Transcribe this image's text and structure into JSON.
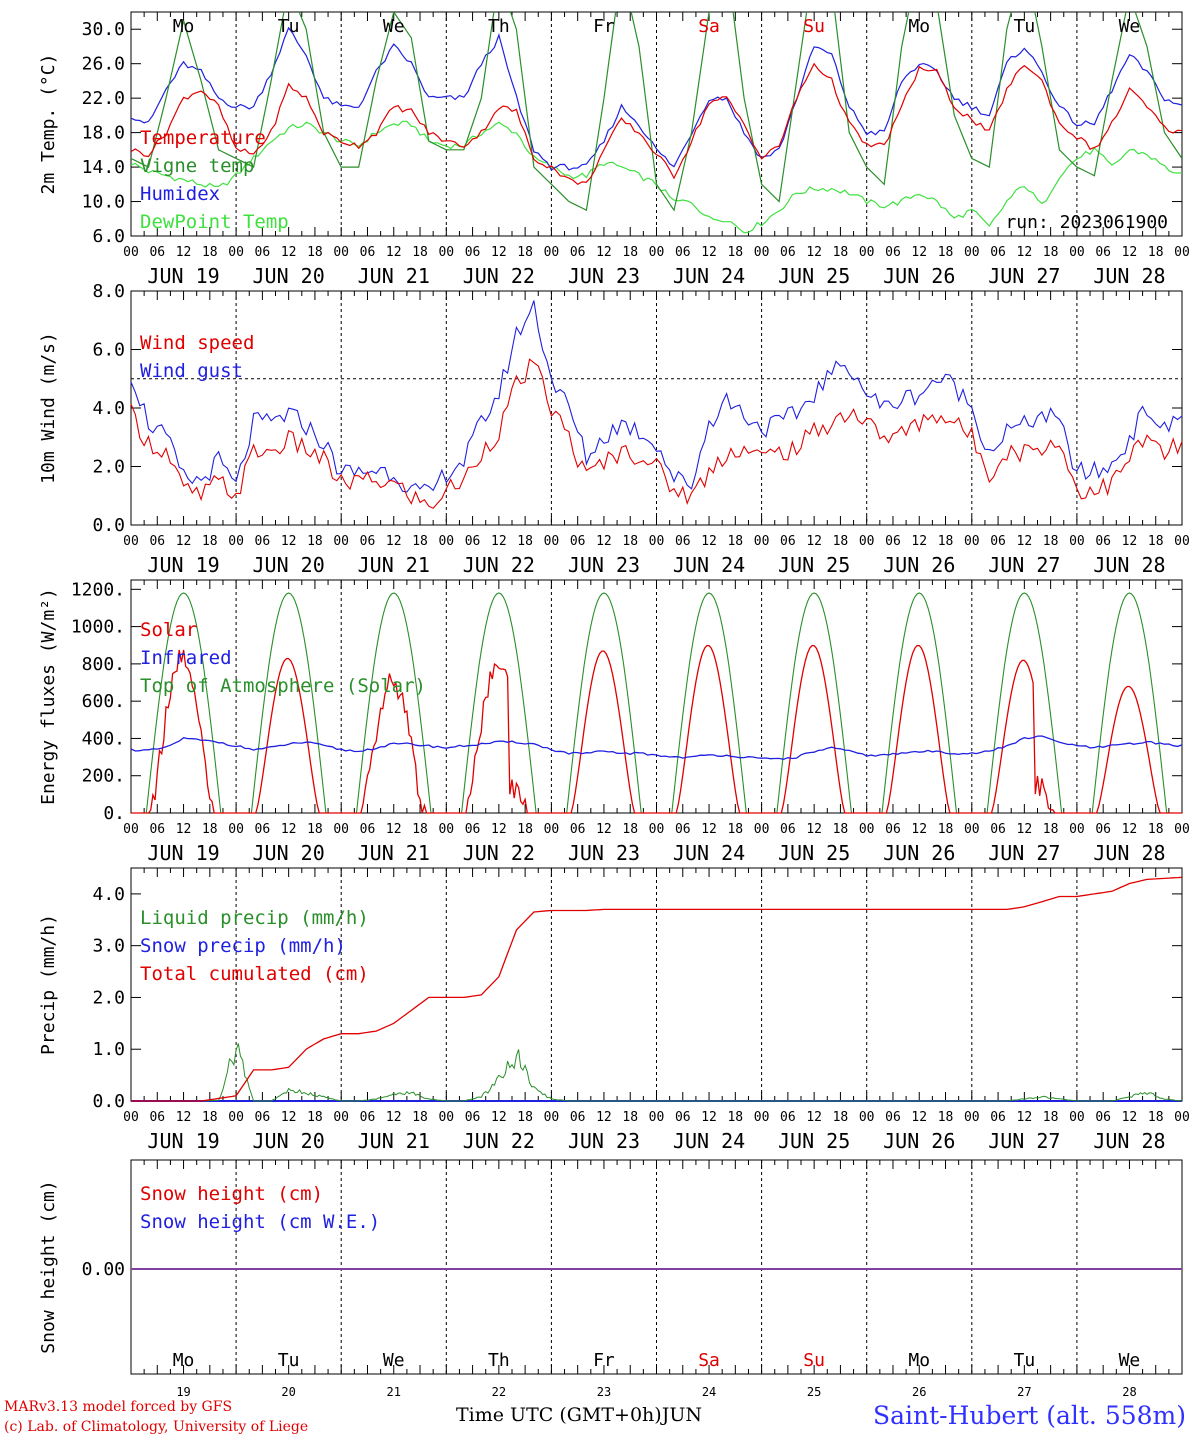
{
  "chart_data": {
    "type": "line",
    "run_label": "run: 2023061900",
    "day_names": [
      "Mo",
      "Tu",
      "We",
      "Th",
      "Fr",
      "Sa",
      "Su",
      "Mo",
      "Tu",
      "We"
    ],
    "day_name_colors": [
      "#000000",
      "#000000",
      "#000000",
      "#000000",
      "#000000",
      "#e00000",
      "#e00000",
      "#000000",
      "#000000",
      "#000000"
    ],
    "date_labels": [
      "JUN 19",
      "JUN 20",
      "JUN 21",
      "JUN 22",
      "JUN 23",
      "JUN 24",
      "JUN 25",
      "JUN 26",
      "JUN 27",
      "JUN 28"
    ],
    "day_numbers": [
      "19",
      "20",
      "21",
      "22",
      "23",
      "24",
      "25",
      "26",
      "27",
      "28"
    ],
    "hour_ticks": [
      "00",
      "06",
      "12",
      "18"
    ],
    "month_label": "JUN",
    "xlabel": "Time UTC (GMT+0h)",
    "panels": [
      {
        "id": "temp",
        "ylabel": "2m Temp. (°C)",
        "ylim": [
          6,
          32
        ],
        "ticks": [
          "6.0",
          "10.0",
          "14.0",
          "18.0",
          "22.0",
          "26.0",
          "30.0"
        ],
        "tick_values": [
          6,
          10,
          14,
          18,
          22,
          26,
          30
        ],
        "series": [
          {
            "name": "Temperature",
            "color": "#e00000",
            "values": [
              16,
              15.5,
              18,
              22,
              23,
              21,
              16,
              15.5,
              18,
              23.5,
              22,
              18,
              17,
              16.5,
              18,
              21,
              20.5,
              18,
              17,
              16.5,
              18,
              21,
              20.5,
              15,
              14,
              12.5,
              12,
              16,
              19.5,
              18,
              15.5,
              13,
              17,
              21.5,
              22,
              19,
              15,
              16.5,
              22,
              26,
              24,
              19,
              16.5,
              16.5,
              21,
              25.5,
              25,
              21,
              19.5,
              18,
              23,
              26,
              24,
              19,
              17.5,
              16,
              19,
              23,
              21,
              18.5,
              18
            ]
          },
          {
            "name": "Vigne temp",
            "color": "#2a8f2a",
            "values": [
              15,
              14,
              22,
              31,
              24,
              16,
              15,
              14,
              24,
              35,
              30,
              18,
              14,
              14,
              24,
              32,
              29,
              17,
              16,
              16,
              22,
              36,
              30,
              14,
              12,
              10,
              9,
              22,
              37,
              28,
              12,
              9,
              18,
              32,
              38,
              22,
              12,
              10,
              24,
              38,
              35,
              18,
              14,
              12,
              28,
              38,
              33,
              20,
              15,
              14,
              30,
              38,
              28,
              16,
              14,
              13,
              24,
              34,
              28,
              18,
              15
            ]
          },
          {
            "name": "Humidex",
            "color": "#2020e0",
            "values": [
              20,
              19,
              23,
              26,
              25,
              22,
              21,
              21,
              25,
              30,
              27,
              22,
              21,
              21,
              25,
              28,
              26,
              22,
              22,
              22,
              26,
              29,
              22,
              16,
              14,
              14,
              14,
              17,
              21,
              19,
              16,
              14,
              18,
              22,
              22,
              18,
              15,
              16,
              22,
              28,
              27,
              21,
              18,
              18,
              24,
              26,
              25,
              22,
              21,
              20,
              26,
              28,
              25,
              21,
              19,
              19,
              23,
              27,
              25,
              22,
              21
            ]
          },
          {
            "name": "DewPoint Temp",
            "color": "#40e040",
            "values": [
              14.5,
              13.5,
              13,
              12.5,
              12,
              11.5,
              13,
              15,
              17,
              18.5,
              19,
              18,
              17,
              16.5,
              18,
              19,
              19,
              17,
              16.5,
              16.5,
              18,
              19,
              18,
              15,
              14,
              13,
              13,
              14.5,
              14,
              13,
              12,
              10,
              10,
              8,
              8,
              6.5,
              7.5,
              9,
              11,
              11.5,
              11.5,
              11,
              10,
              9.5,
              10,
              11,
              10,
              8,
              9,
              7,
              10,
              12,
              9.5,
              13,
              15,
              16,
              14,
              16,
              15.5,
              14,
              13
            ]
          }
        ],
        "legend": [
          "Temperature",
          "Vigne temp",
          "Humidex",
          "DewPoint Temp"
        ]
      },
      {
        "id": "wind",
        "ylabel": "10m Wind (m/s)",
        "ylim": [
          0,
          8
        ],
        "ticks": [
          "0.0",
          "2.0",
          "4.0",
          "6.0",
          "8.0"
        ],
        "tick_values": [
          0,
          2,
          4,
          6,
          8
        ],
        "ref_line": 5,
        "series": [
          {
            "name": "Wind speed",
            "color": "#e00000",
            "values": [
              3.8,
              2.8,
              2.5,
              1.2,
              1.0,
              1.5,
              1.0,
              2.5,
              2.5,
              2.9,
              2.6,
              2.2,
              1.4,
              1.5,
              1.5,
              1.4,
              1.0,
              0.6,
              1.2,
              1.5,
              2.5,
              3.2,
              4.8,
              5.5,
              4.0,
              3.0,
              1.6,
              2.2,
              2.5,
              2.4,
              2.0,
              1.2,
              1.0,
              1.8,
              2.5,
              2.6,
              2.3,
              2.5,
              2.6,
              3.2,
              3.5,
              3.9,
              3.5,
              3.0,
              3.1,
              3.5,
              3.8,
              3.5,
              3.0,
              1.8,
              2.5,
              2.5,
              2.7,
              2.8,
              1.2,
              1.2,
              1.4,
              2.3,
              3.0,
              2.4,
              2.8
            ]
          },
          {
            "name": "Wind gust",
            "color": "#2020e0",
            "values": [
              5.2,
              3.5,
              3.0,
              1.6,
              1.5,
              2.2,
              1.3,
              3.5,
              3.5,
              3.8,
              3.4,
              2.8,
              1.8,
              1.8,
              1.9,
              1.8,
              1.2,
              1.0,
              1.8,
              2.2,
              3.5,
              4.5,
              6.5,
              7.5,
              5.0,
              4.0,
              2.3,
              3.0,
              3.5,
              3.2,
              2.8,
              1.6,
              1.4,
              3.5,
              4.3,
              3.8,
              3.3,
              3.5,
              3.8,
              4.5,
              5.2,
              5.5,
              4.5,
              4.0,
              4.3,
              4.5,
              5.0,
              4.8,
              4.0,
              2.5,
              3.2,
              3.4,
              3.8,
              3.5,
              1.8,
              1.8,
              2.0,
              3.0,
              4.0,
              3.2,
              3.8
            ]
          }
        ],
        "legend": [
          "Wind speed",
          "Wind gust"
        ]
      },
      {
        "id": "energy",
        "ylabel": "Energy fluxes (W/m²)",
        "ylim": [
          0,
          1250
        ],
        "ticks": [
          "0.",
          "200.",
          "400.",
          "600.",
          "800.",
          "1000.",
          "1200."
        ],
        "tick_values": [
          0,
          200,
          400,
          600,
          800,
          1000,
          1200
        ],
        "solar_peaks": [
          860,
          830,
          700,
          800,
          870,
          900,
          900,
          900,
          820,
          680
        ],
        "solar_cut": [
          0,
          0,
          0,
          0.35,
          0,
          0,
          0,
          0,
          0.3,
          0
        ],
        "toa_peak": 1180,
        "infrared": [
          340,
          335,
          350,
          400,
          390,
          380,
          360,
          340,
          350,
          370,
          380,
          360,
          340,
          330,
          350,
          370,
          370,
          360,
          350,
          360,
          370,
          380,
          380,
          370,
          340,
          320,
          320,
          330,
          320,
          320,
          310,
          300,
          300,
          310,
          310,
          300,
          290,
          290,
          300,
          330,
          350,
          330,
          310,
          310,
          320,
          330,
          330,
          320,
          320,
          330,
          360,
          400,
          410,
          380,
          360,
          350,
          360,
          370,
          380,
          370,
          360
        ],
        "legend": [
          "Solar",
          "Infrared",
          "Top of Atmosphere (Solar)"
        ],
        "colors": {
          "solar": "#e00000",
          "infrared": "#2020e0",
          "toa": "#2a8f2a"
        }
      },
      {
        "id": "precip",
        "ylabel": "Precip (mm/h)",
        "ylim": [
          0,
          4.5
        ],
        "ticks": [
          "0.0",
          "1.0",
          "2.0",
          "3.0",
          "4.0"
        ],
        "tick_values": [
          0,
          1,
          2,
          3,
          4
        ],
        "series": [
          {
            "name": "Total cumulated (cm)",
            "color": "#e00000",
            "values": [
              0,
              0,
              0,
              0,
              0,
              0.05,
              0.1,
              0.6,
              0.6,
              0.65,
              1.0,
              1.2,
              1.3,
              1.3,
              1.35,
              1.5,
              1.75,
              2.0,
              2.0,
              2.0,
              2.05,
              2.4,
              3.3,
              3.65,
              3.68,
              3.68,
              3.68,
              3.7,
              3.7,
              3.7,
              3.7,
              3.7,
              3.7,
              3.7,
              3.7,
              3.7,
              3.7,
              3.7,
              3.7,
              3.7,
              3.7,
              3.7,
              3.7,
              3.7,
              3.7,
              3.7,
              3.7,
              3.7,
              3.7,
              3.7,
              3.7,
              3.75,
              3.85,
              3.95,
              3.95,
              4.0,
              4.05,
              4.2,
              4.28,
              4.3,
              4.32
            ]
          },
          {
            "name": "Liquid precip (mm/h)",
            "color": "#2a8f2a",
            "values": [
              0,
              0,
              0,
              0,
              0,
              0.02,
              1.3,
              0,
              0,
              0.25,
              0.2,
              0.1,
              0,
              0,
              0.05,
              0.15,
              0.2,
              0.05,
              0,
              0,
              0.1,
              0.5,
              1.1,
              0.3,
              0.05,
              0,
              0,
              0,
              0,
              0,
              0,
              0,
              0,
              0,
              0,
              0,
              0,
              0,
              0,
              0,
              0,
              0,
              0,
              0,
              0,
              0,
              0,
              0,
              0,
              0,
              0,
              0.05,
              0.1,
              0.05,
              0,
              0,
              0,
              0.1,
              0.2,
              0.05,
              0
            ]
          },
          {
            "name": "Snow precip (mm/h)",
            "color": "#2020e0",
            "values": [
              0,
              0
            ]
          }
        ],
        "legend": [
          "Liquid precip (mm/h)",
          "Snow precip (mm/h)",
          "Total cumulated (cm)"
        ]
      },
      {
        "id": "snow",
        "ylabel": "Snow height (cm)",
        "ticks": [
          "0.00"
        ],
        "series": [
          {
            "name": "Snow height (cm)",
            "color": "#e00000",
            "values": [
              0,
              0
            ]
          },
          {
            "name": "Snow height (cm W.E.)",
            "color": "#2020e0",
            "values": [
              0,
              0
            ]
          }
        ],
        "legend": [
          "Snow height (cm)",
          "Snow height (cm W.E.)"
        ]
      }
    ]
  },
  "footer": {
    "model_line": "MARv3.13 model forced by GFS",
    "credit_line": "(c) Lab. of Climatology, University of Liege",
    "station": "Saint-Hubert (alt. 558m)"
  }
}
